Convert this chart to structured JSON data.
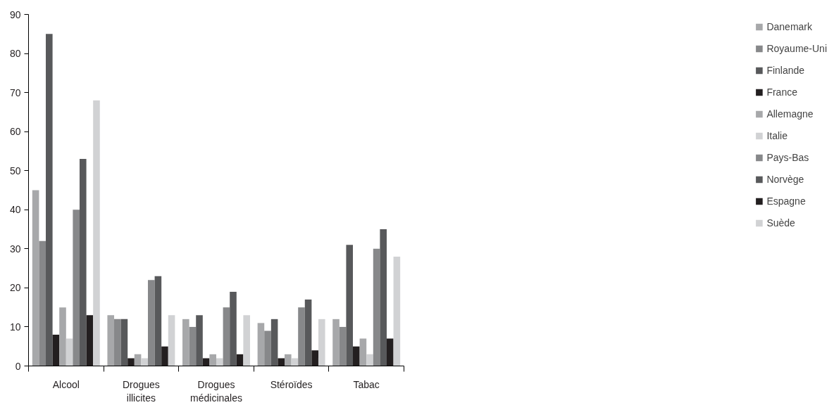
{
  "chart_data": {
    "type": "bar",
    "categories": [
      "Alcool",
      "Drogues illicites",
      "Drogues médicinales",
      "Stéroïdes",
      "Tabac"
    ],
    "series": [
      {
        "name": "Danemark",
        "color": "#a7a8aa",
        "values": [
          45,
          13,
          12,
          11,
          12
        ]
      },
      {
        "name": "Royaume-Uni",
        "color": "#87888a",
        "values": [
          32,
          12,
          10,
          9,
          10
        ]
      },
      {
        "name": "Finlande",
        "color": "#58595b",
        "values": [
          85,
          12,
          13,
          12,
          31
        ]
      },
      {
        "name": "France",
        "color": "#231f20",
        "values": [
          8,
          2,
          2,
          2,
          5
        ]
      },
      {
        "name": "Allemagne",
        "color": "#a7a8aa",
        "values": [
          15,
          3,
          3,
          3,
          7
        ]
      },
      {
        "name": "Italie",
        "color": "#d1d2d4",
        "values": [
          7,
          2,
          2,
          2,
          3
        ]
      },
      {
        "name": "Pays-Bas",
        "color": "#87888a",
        "values": [
          40,
          22,
          15,
          15,
          30
        ]
      },
      {
        "name": "Norvège",
        "color": "#58595b",
        "values": [
          53,
          23,
          19,
          17,
          35
        ]
      },
      {
        "name": "Espagne",
        "color": "#231f20",
        "values": [
          13,
          5,
          3,
          4,
          7
        ]
      },
      {
        "name": "Suède",
        "color": "#d1d2d4",
        "values": [
          68,
          13,
          13,
          12,
          28
        ]
      }
    ],
    "ylim": [
      0,
      90
    ],
    "yticks": [
      0,
      10,
      20,
      30,
      40,
      50,
      60,
      70,
      80,
      90
    ],
    "grid": false,
    "legend": "right"
  }
}
